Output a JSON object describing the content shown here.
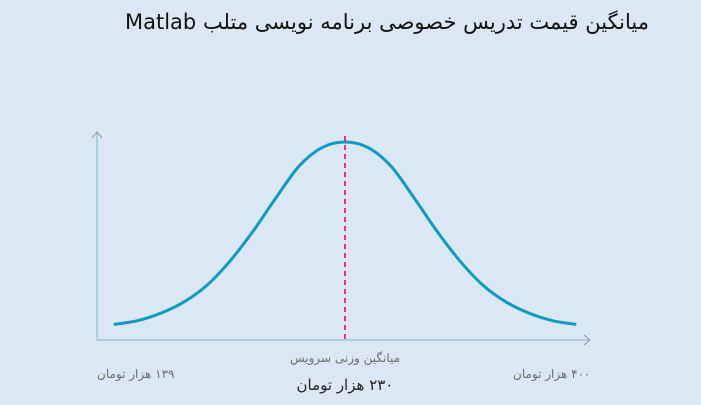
{
  "title": "میانگین قیمت تدریس خصوصی برنامه نویسی متلب Matlab",
  "chart_data": {
    "type": "line",
    "x": [
      0,
      0.05,
      0.1,
      0.15,
      0.2,
      0.25,
      0.3,
      0.35,
      0.4,
      0.45,
      0.5,
      0.55,
      0.6,
      0.65,
      0.7,
      0.75,
      0.8,
      0.85,
      0.9,
      0.95,
      1
    ],
    "values": [
      0.02,
      0.04,
      0.08,
      0.14,
      0.23,
      0.36,
      0.52,
      0.7,
      0.87,
      0.97,
      1.0,
      0.97,
      0.87,
      0.7,
      0.52,
      0.36,
      0.23,
      0.14,
      0.08,
      0.04,
      0.02
    ],
    "marker_label": "میانگین وزنی سرویس",
    "left_label": "۱۳۹ هزار تومان",
    "right_label": "۴۰۰ هزار تومان",
    "mean_label": "۲۳۰ هزار تومان",
    "line_color": "#0f9bbd",
    "marker_color": "#e8356b",
    "axis_color": "#8bbfd0",
    "grid": false
  }
}
